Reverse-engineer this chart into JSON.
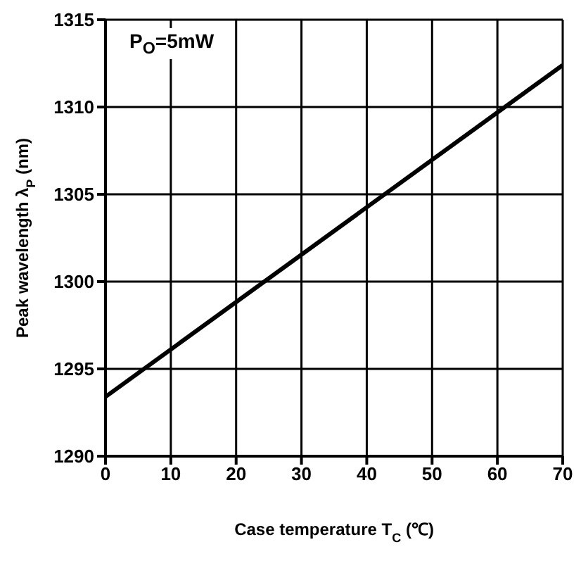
{
  "chart_data": {
    "type": "line",
    "xlabel": "Case temperature T$_{C}$ (℃)",
    "ylabel": "Peak wavelength λ$_{P}$ (nm)",
    "annotations": [
      "P$_{O}$=5mW"
    ],
    "x": [
      0,
      70
    ],
    "series": [
      {
        "color": "#000000",
        "values": [
          1293.4,
          1312.4
        ]
      }
    ],
    "xlim": [
      0,
      70
    ],
    "xticks": [
      0,
      10,
      20,
      30,
      40,
      50,
      60,
      70
    ],
    "ylim": [
      1290,
      1315
    ],
    "yticks": [
      1290,
      1295,
      1300,
      1305,
      1310,
      1315
    ],
    "grid": true,
    "marker": "none",
    "line_style": "solid"
  }
}
